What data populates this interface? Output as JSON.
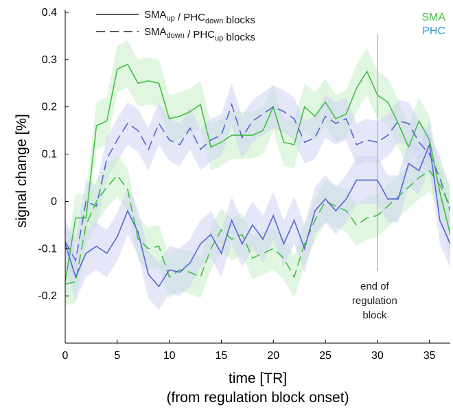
{
  "chart_data": {
    "type": "line",
    "xlabel": "time [TR]",
    "xlabel_line2": "(from regulation block onset)",
    "ylabel": "signal change [%]",
    "xlim": [
      0,
      37
    ],
    "ylim": [
      -0.3,
      0.4
    ],
    "xticks": [
      0,
      5,
      10,
      15,
      20,
      25,
      30,
      35
    ],
    "yticks": [
      -0.2,
      -0.1,
      0,
      0.1,
      0.2,
      0.3,
      0.4
    ],
    "ytick_labels": [
      "-0.2",
      "-0.1",
      "0",
      "0.1",
      "0.2",
      "0.3",
      "0.4"
    ],
    "grid": false,
    "colors": {
      "SMA": "#40c040",
      "PHC": "#5566cc",
      "band_SMA": "#c8efc8",
      "band_PHC": "#cfd4f4",
      "marker": "#aaaaaa",
      "axis": "#000000"
    },
    "legend": {
      "placement": "top-left",
      "entries": [
        {
          "style": "solid",
          "parts": [
            [
              "SMA",
              "up"
            ],
            [
              " / PHC",
              "down"
            ],
            [
              " blocks",
              ""
            ]
          ]
        },
        {
          "style": "dashed",
          "parts": [
            [
              "SMA",
              "down"
            ],
            [
              " / PHC",
              "up"
            ],
            [
              " blocks",
              ""
            ]
          ]
        }
      ]
    },
    "region_labels": [
      {
        "text": "SMA",
        "color": "#40c040"
      },
      {
        "text": "PHC",
        "color": "#3399cc"
      }
    ],
    "annotation": {
      "x": 30,
      "y_top": 0.355,
      "lines": [
        "end of",
        "regulation",
        "block"
      ]
    },
    "x": [
      0,
      1,
      2,
      3,
      4,
      5,
      6,
      7,
      8,
      9,
      10,
      11,
      12,
      13,
      14,
      15,
      16,
      17,
      18,
      19,
      20,
      21,
      22,
      23,
      24,
      25,
      26,
      27,
      28,
      29,
      30,
      31,
      32,
      33,
      34,
      35,
      36,
      37
    ],
    "series": [
      {
        "color": "SMA",
        "style": "solid",
        "band": 0.05,
        "values": [
          -0.17,
          -0.035,
          -0.035,
          0.16,
          0.17,
          0.28,
          0.29,
          0.25,
          0.255,
          0.25,
          0.175,
          0.18,
          0.19,
          0.205,
          0.115,
          0.125,
          0.14,
          0.14,
          0.14,
          0.15,
          0.2,
          0.125,
          0.12,
          0.2,
          0.18,
          0.21,
          0.175,
          0.185,
          0.24,
          0.275,
          0.225,
          0.21,
          0.165,
          0.115,
          0.17,
          0.13,
          0.02,
          -0.07
        ]
      },
      {
        "color": "PHC",
        "style": "dashed",
        "band": 0.045,
        "values": [
          -0.085,
          -0.125,
          0.0,
          -0.01,
          0.09,
          0.13,
          0.165,
          0.15,
          0.11,
          0.165,
          0.13,
          0.12,
          0.155,
          0.11,
          0.13,
          0.14,
          0.205,
          0.135,
          0.17,
          0.185,
          0.2,
          0.19,
          0.175,
          0.125,
          0.135,
          0.18,
          0.165,
          0.175,
          0.12,
          0.13,
          0.125,
          0.14,
          0.17,
          0.165,
          0.125,
          0.1,
          0.05,
          -0.02
        ]
      },
      {
        "color": "SMA",
        "style": "dashed",
        "band": 0.045,
        "values": [
          -0.175,
          -0.17,
          -0.05,
          0.0,
          0.03,
          0.055,
          0.025,
          -0.08,
          -0.1,
          -0.095,
          -0.16,
          -0.145,
          -0.15,
          -0.16,
          -0.1,
          -0.06,
          -0.08,
          -0.07,
          -0.12,
          -0.11,
          -0.1,
          -0.12,
          -0.16,
          -0.09,
          -0.04,
          0.0,
          -0.01,
          -0.02,
          -0.05,
          -0.035,
          -0.03,
          -0.01,
          0.01,
          0.03,
          0.05,
          0.065,
          0.035,
          -0.01
        ]
      },
      {
        "color": "PHC",
        "style": "solid",
        "band": 0.05,
        "values": [
          -0.09,
          -0.16,
          -0.11,
          -0.095,
          -0.11,
          -0.075,
          -0.02,
          -0.065,
          -0.155,
          -0.18,
          -0.145,
          -0.15,
          -0.13,
          -0.09,
          -0.07,
          -0.11,
          -0.04,
          -0.09,
          -0.05,
          -0.08,
          -0.03,
          -0.09,
          -0.04,
          -0.1,
          -0.02,
          0.005,
          -0.02,
          0.005,
          0.045,
          0.045,
          0.045,
          0.005,
          0.005,
          0.08,
          0.065,
          0.12,
          -0.04,
          -0.09
        ]
      }
    ]
  }
}
